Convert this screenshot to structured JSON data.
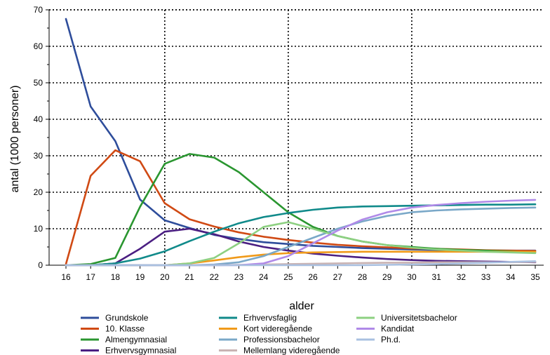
{
  "chart_data": {
    "type": "line",
    "xlabel": "alder",
    "ylabel": "antal (1000 personer)",
    "xlim": [
      16,
      35
    ],
    "ylim": [
      0,
      70
    ],
    "x": [
      16,
      17,
      18,
      19,
      20,
      21,
      22,
      23,
      24,
      25,
      26,
      27,
      28,
      29,
      30,
      31,
      32,
      33,
      34,
      35
    ],
    "yticks": [
      0,
      10,
      20,
      30,
      40,
      50,
      60,
      70
    ],
    "grid": {
      "vertical_dotted_at": [
        20,
        25,
        30
      ],
      "horizontal_dotted": true
    },
    "legend_position": "bottom",
    "series": [
      {
        "name": "Grundskole",
        "color": "#2e4d9b",
        "values": [
          67.5,
          43.5,
          34,
          18,
          12.3,
          10.2,
          8.3,
          7.2,
          6.3,
          5.8,
          5.3,
          5,
          4.7,
          4.5,
          4.3,
          4.2,
          4.1,
          4,
          4,
          4
        ]
      },
      {
        "name": "10. Klasse",
        "color": "#d04a14",
        "values": [
          0.3,
          24.5,
          31.5,
          28.5,
          17,
          12.6,
          10.6,
          9,
          7.8,
          6.9,
          6.2,
          5.6,
          5.2,
          4.9,
          4.6,
          4.5,
          4.3,
          4.1,
          4,
          3.9
        ]
      },
      {
        "name": "Almengymnasial",
        "color": "#2a9630",
        "values": [
          0,
          0.3,
          2,
          16,
          27.8,
          30.5,
          29.5,
          25.5,
          20,
          14.5,
          10.5,
          8,
          6.5,
          5.5,
          5,
          4.5,
          4.2,
          4,
          3.8,
          3.5
        ]
      },
      {
        "name": "Erhvervsgymnasial",
        "color": "#4b1f82",
        "values": [
          0,
          0,
          0.5,
          4.5,
          9.2,
          10,
          8.5,
          6.5,
          5,
          4,
          3.2,
          2.6,
          2.1,
          1.7,
          1.4,
          1.2,
          1.1,
          1,
          0.9,
          0.8
        ]
      },
      {
        "name": "Erhvervsfaglig",
        "color": "#108a8a",
        "values": [
          0,
          0,
          0.5,
          1.8,
          3.8,
          6.6,
          9.2,
          11.5,
          13.2,
          14.3,
          15.2,
          15.8,
          16.1,
          16.2,
          16.3,
          16.4,
          16.5,
          16.6,
          16.6,
          16.7
        ]
      },
      {
        "name": "Kort videregående",
        "color": "#f09a1a",
        "values": [
          0,
          0,
          0,
          0,
          0,
          0.5,
          1.3,
          2.2,
          2.9,
          3.3,
          3.5,
          3.6,
          3.7,
          3.7,
          3.7,
          3.7,
          3.7,
          3.7,
          3.7,
          3.7
        ]
      },
      {
        "name": "Professionsbachelor",
        "color": "#7aa8c8",
        "values": [
          0,
          0,
          0,
          0,
          0,
          0,
          0.2,
          0.8,
          2.5,
          5,
          7.5,
          10,
          12,
          13.5,
          14.5,
          15,
          15.3,
          15.5,
          15.7,
          15.8
        ]
      },
      {
        "name": "Mellemlang videregående",
        "color": "#c9b3b3",
        "values": [
          0,
          0,
          0,
          0,
          0,
          0,
          0,
          0.1,
          0.2,
          0.3,
          0.4,
          0.5,
          0.6,
          0.7,
          0.7,
          0.8,
          0.8,
          0.8,
          0.8,
          0.9
        ]
      },
      {
        "name": "Universitetsbachelor",
        "color": "#8dd081",
        "values": [
          0,
          0,
          0,
          0,
          0,
          0.5,
          2,
          6,
          10.5,
          11.8,
          10,
          8,
          6.5,
          5.5,
          4.8,
          4.3,
          4,
          3.7,
          3.5,
          3.3
        ]
      },
      {
        "name": "Kandidat",
        "color": "#b08ae8",
        "values": [
          0,
          0,
          0,
          0,
          0,
          0,
          0,
          0,
          0.5,
          2.5,
          6,
          9.5,
          12.5,
          14.5,
          15.8,
          16.5,
          17,
          17.4,
          17.7,
          17.9
        ]
      },
      {
        "name": "Ph.d.",
        "color": "#a9c0e0",
        "values": [
          0,
          0,
          0,
          0,
          0,
          0,
          0,
          0,
          0,
          0,
          0,
          0,
          0,
          0.1,
          0.2,
          0.3,
          0.5,
          0.7,
          0.9,
          1.1
        ]
      }
    ]
  }
}
